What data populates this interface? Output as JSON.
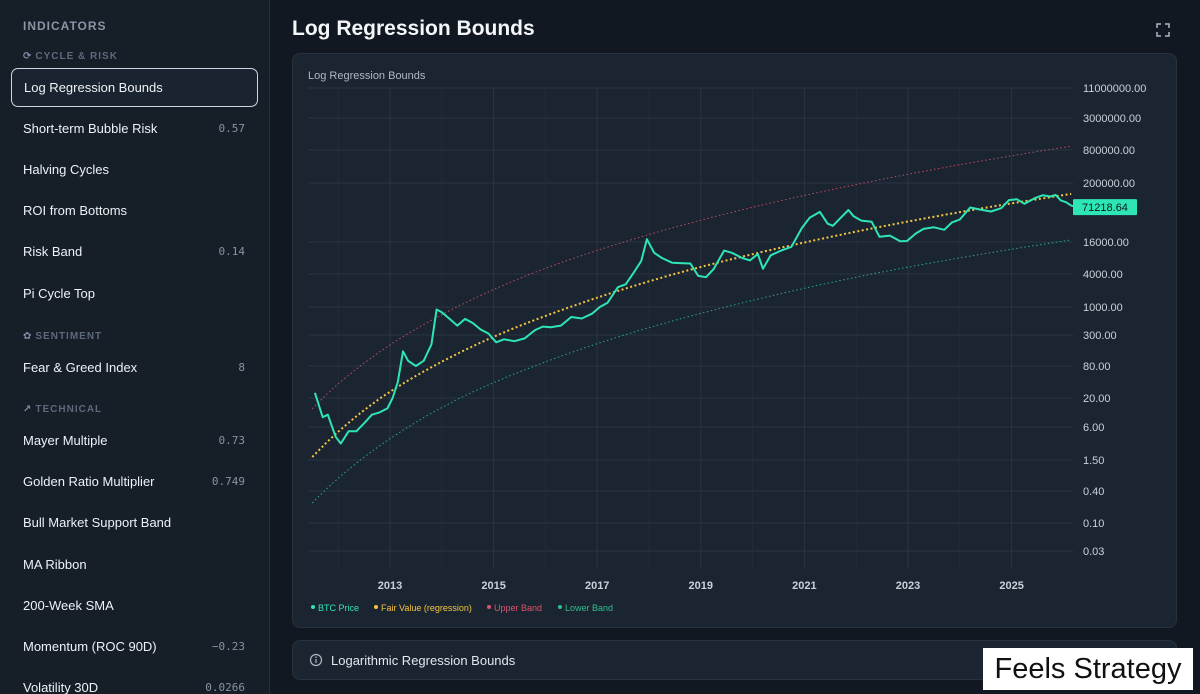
{
  "sidebar": {
    "header": "INDICATORS",
    "sections": [
      {
        "glyph": "⟳",
        "title": "CYCLE & RISK"
      },
      {
        "glyph": "✿",
        "title": "SENTIMENT"
      },
      {
        "glyph": "↗",
        "title": "TECHNICAL"
      }
    ],
    "items": [
      {
        "label": "Log Regression Bounds",
        "value": "",
        "active": true
      },
      {
        "label": "Short-term Bubble Risk",
        "value": "0.57"
      },
      {
        "label": "Halving Cycles",
        "value": ""
      },
      {
        "label": "ROI from Bottoms",
        "value": ""
      },
      {
        "label": "Risk Band",
        "value": "0.14"
      },
      {
        "label": "Pi Cycle Top",
        "value": ""
      },
      {
        "label": "Fear & Greed Index",
        "value": "8"
      },
      {
        "label": "Mayer Multiple",
        "value": "0.73"
      },
      {
        "label": "Golden Ratio Multiplier",
        "value": "0.749"
      },
      {
        "label": "Bull Market Support Band",
        "value": ""
      },
      {
        "label": "MA Ribbon",
        "value": ""
      },
      {
        "label": "200-Week SMA",
        "value": ""
      },
      {
        "label": "Momentum (ROC 90D)",
        "value": "−0.23"
      },
      {
        "label": "Volatility 30D",
        "value": "0.0266"
      }
    ]
  },
  "main": {
    "title": "Log Regression Bounds",
    "expand_icon": "expand-icon",
    "info_label": "Logarithmic Regression Bounds",
    "info_icon": "info-icon"
  },
  "watermark": "Feels Strategy",
  "colors": {
    "price": "#2ee6b5",
    "fair": "#f4c542",
    "upper": "#d9566e",
    "lower": "#2fbf8f",
    "badge": "#2ee6b5"
  },
  "chart_data": {
    "type": "line",
    "title": "Log Regression Bounds",
    "y_scale": "log",
    "y_ticks": [
      "11000000.00",
      "3000000.00",
      "800000.00",
      "200000.00",
      "16000.00",
      "4000.00",
      "1000.00",
      "300.00",
      "80.00",
      "20.00",
      "6.00",
      "1.50",
      "0.40",
      "0.10",
      "0.03"
    ],
    "x_ticks": [
      "2013",
      "2015",
      "2017",
      "2019",
      "2021",
      "2023",
      "2025"
    ],
    "xlim": [
      2011.5,
      2026.3
    ],
    "last_price_label": "71218.64",
    "grid": true,
    "legend_position": "bottom-left",
    "series": [
      {
        "name": "BTC Price",
        "color": "#2ee6b5",
        "style": "solid",
        "points": [
          [
            2011.55,
            25
          ],
          [
            2011.7,
            9
          ],
          [
            2011.8,
            10
          ],
          [
            2011.95,
            4
          ],
          [
            2012.05,
            3
          ],
          [
            2012.2,
            5
          ],
          [
            2012.35,
            5
          ],
          [
            2012.5,
            7
          ],
          [
            2012.65,
            10
          ],
          [
            2012.8,
            11
          ],
          [
            2012.95,
            13
          ],
          [
            2013.05,
            20
          ],
          [
            2013.15,
            40
          ],
          [
            2013.25,
            150
          ],
          [
            2013.35,
            100
          ],
          [
            2013.5,
            80
          ],
          [
            2013.65,
            100
          ],
          [
            2013.8,
            200
          ],
          [
            2013.9,
            900
          ],
          [
            2014.0,
            800
          ],
          [
            2014.15,
            600
          ],
          [
            2014.3,
            450
          ],
          [
            2014.45,
            600
          ],
          [
            2014.6,
            500
          ],
          [
            2014.75,
            380
          ],
          [
            2014.9,
            320
          ],
          [
            2015.05,
            220
          ],
          [
            2015.2,
            250
          ],
          [
            2015.4,
            230
          ],
          [
            2015.6,
            260
          ],
          [
            2015.8,
            370
          ],
          [
            2015.95,
            430
          ],
          [
            2016.1,
            420
          ],
          [
            2016.3,
            450
          ],
          [
            2016.5,
            650
          ],
          [
            2016.7,
            610
          ],
          [
            2016.9,
            750
          ],
          [
            2017.05,
            1000
          ],
          [
            2017.2,
            1200
          ],
          [
            2017.4,
            2300
          ],
          [
            2017.55,
            2600
          ],
          [
            2017.7,
            4200
          ],
          [
            2017.85,
            7000
          ],
          [
            2017.96,
            18000
          ],
          [
            2018.1,
            10000
          ],
          [
            2018.25,
            8000
          ],
          [
            2018.45,
            6500
          ],
          [
            2018.65,
            6400
          ],
          [
            2018.8,
            6300
          ],
          [
            2018.95,
            3700
          ],
          [
            2019.1,
            3500
          ],
          [
            2019.25,
            5000
          ],
          [
            2019.45,
            11000
          ],
          [
            2019.6,
            10000
          ],
          [
            2019.8,
            8000
          ],
          [
            2019.95,
            7200
          ],
          [
            2020.1,
            9500
          ],
          [
            2020.2,
            5000
          ],
          [
            2020.35,
            9000
          ],
          [
            2020.55,
            11000
          ],
          [
            2020.75,
            13000
          ],
          [
            2020.95,
            29000
          ],
          [
            2021.1,
            45000
          ],
          [
            2021.3,
            58000
          ],
          [
            2021.45,
            35000
          ],
          [
            2021.55,
            32000
          ],
          [
            2021.7,
            45000
          ],
          [
            2021.85,
            63000
          ],
          [
            2021.95,
            48000
          ],
          [
            2022.1,
            40000
          ],
          [
            2022.3,
            38000
          ],
          [
            2022.45,
            20000
          ],
          [
            2022.65,
            21000
          ],
          [
            2022.85,
            16500
          ],
          [
            2022.98,
            16700
          ],
          [
            2023.15,
            23000
          ],
          [
            2023.3,
            28000
          ],
          [
            2023.5,
            30000
          ],
          [
            2023.7,
            27000
          ],
          [
            2023.85,
            37000
          ],
          [
            2024.0,
            42000
          ],
          [
            2024.2,
            70000
          ],
          [
            2024.4,
            64000
          ],
          [
            2024.6,
            59000
          ],
          [
            2024.8,
            68000
          ],
          [
            2024.95,
            96000
          ],
          [
            2025.1,
            100000
          ],
          [
            2025.25,
            82000
          ],
          [
            2025.45,
            105000
          ],
          [
            2025.6,
            118000
          ],
          [
            2025.75,
            112000
          ],
          [
            2025.85,
            120000
          ],
          [
            2025.95,
            95000
          ],
          [
            2026.05,
            88000
          ],
          [
            2026.15,
            76000
          ],
          [
            2026.25,
            71218.64
          ]
        ]
      },
      {
        "name": "Fair Value (regression)",
        "color": "#f4c542",
        "style": "dotted"
      },
      {
        "name": "Upper Band",
        "color": "#d9566e",
        "style": "dotted"
      },
      {
        "name": "Lower Band",
        "color": "#2fbf8f",
        "style": "dotted"
      }
    ]
  }
}
